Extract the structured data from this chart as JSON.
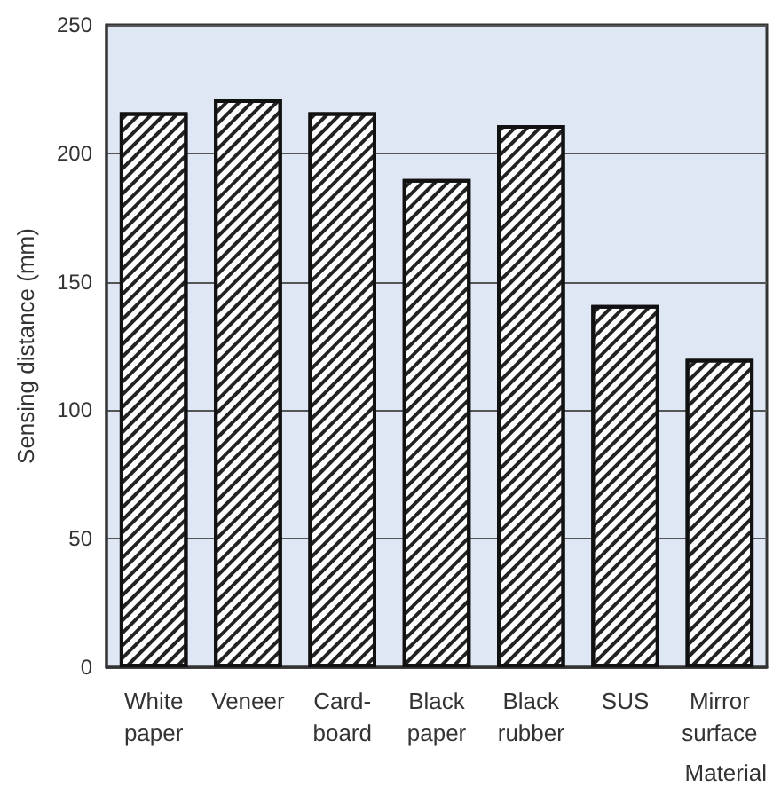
{
  "chart_data": {
    "type": "bar",
    "xlabel": "Material",
    "ylabel": "Sensing distance (mm)",
    "categories": [
      "White\npaper",
      "Veneer",
      "Card-\nboard",
      "Black\npaper",
      "Black\nrubber",
      "SUS",
      "Mirror\nsurface"
    ],
    "values": [
      216,
      221,
      216,
      190,
      211,
      141,
      120
    ],
    "color": "#ffffff",
    "ylim": [
      0,
      250
    ],
    "yticks": [
      0,
      50,
      100,
      150,
      200,
      250
    ],
    "grid": "y"
  }
}
